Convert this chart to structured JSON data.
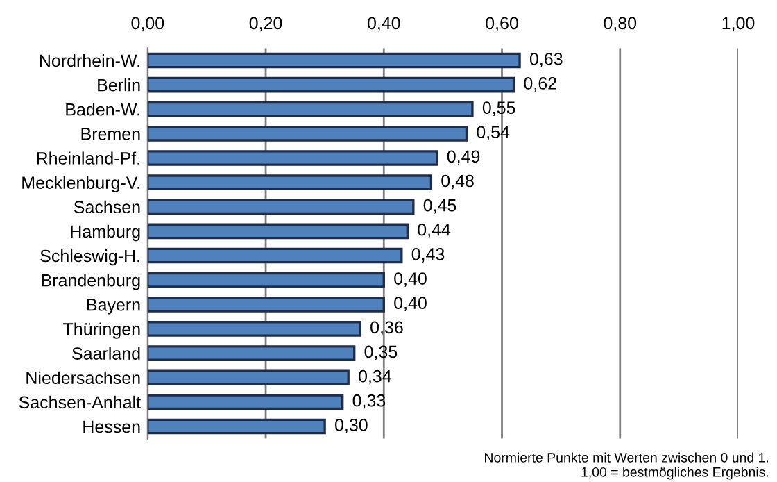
{
  "chart_data": {
    "type": "bar",
    "orientation": "horizontal",
    "categories": [
      "Nordrhein-W.",
      "Berlin",
      "Baden-W.",
      "Bremen",
      "Rheinland-Pf.",
      "Mecklenburg-V.",
      "Sachsen",
      "Hamburg",
      "Schleswig-H.",
      "Brandenburg",
      "Bayern",
      "Thüringen",
      "Saarland",
      "Niedersachsen",
      "Sachsen-Anhalt",
      "Hessen"
    ],
    "values": [
      0.63,
      0.62,
      0.55,
      0.54,
      0.49,
      0.48,
      0.45,
      0.44,
      0.43,
      0.4,
      0.4,
      0.36,
      0.35,
      0.34,
      0.33,
      0.3
    ],
    "value_labels": [
      "0,63",
      "0,62",
      "0,55",
      "0,54",
      "0,49",
      "0,48",
      "0,45",
      "0,44",
      "0,43",
      "0,40",
      "0,40",
      "0,36",
      "0,35",
      "0,34",
      "0,33",
      "0,30"
    ],
    "color": "#4f81bd",
    "xlim": [
      0,
      1
    ],
    "xticks": [
      {
        "value": 0,
        "label": "0,00"
      },
      {
        "value": 0.2,
        "label": "0,20"
      },
      {
        "value": 0.4,
        "label": "0,40"
      },
      {
        "value": 0.6,
        "label": "0,60"
      },
      {
        "value": 0.8,
        "label": "0,80"
      },
      {
        "value": 1,
        "label": "1,00"
      }
    ],
    "grid": "x",
    "annotations": [
      "Normierte Punkte mit Werten zwischen 0 und 1.\n1,00 = bestmögliches Ergebnis."
    ]
  }
}
